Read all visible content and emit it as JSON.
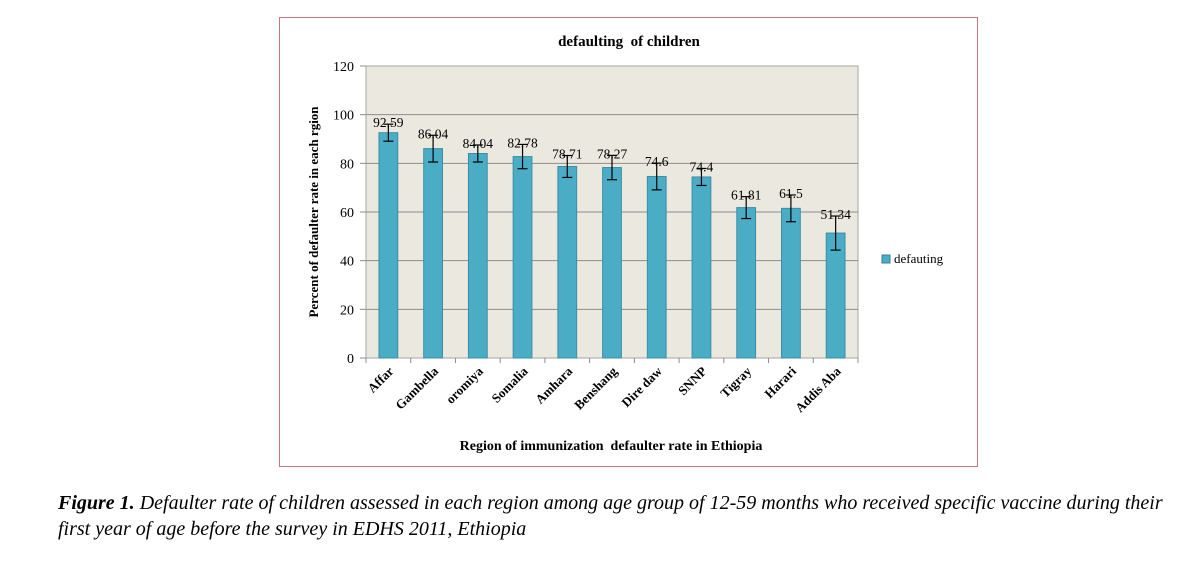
{
  "chart_data": {
    "type": "bar",
    "title": "defaulting  of children",
    "xlabel": "Region of immunization  defaulter rate in Ethiopia",
    "ylabel": "Percent of defaulter rate in each rgion",
    "ylim": [
      0,
      120
    ],
    "yticks": [
      0,
      20,
      40,
      60,
      80,
      100,
      120
    ],
    "grid": true,
    "legend_position": "right",
    "categories": [
      "Affar",
      "Gambella",
      "oromiya",
      "Somalia",
      "Amhara",
      "Benshang",
      "Dire daw",
      "SNNP",
      "Tigray",
      "Harari",
      "Addis Aba"
    ],
    "series": [
      {
        "name": "defauting",
        "color": "#4bacc6",
        "values": [
          92.59,
          86.04,
          84.04,
          82.78,
          78.71,
          78.27,
          74.6,
          74.4,
          61.81,
          61.5,
          51.34
        ],
        "labels": [
          "92.59",
          "86.04",
          "84.04",
          "82.78",
          "78.71",
          "78.27",
          "74.6",
          "74.4",
          "61.81",
          "61.5",
          "51.34"
        ],
        "error": [
          3.5,
          5.5,
          3.5,
          5,
          4.5,
          5,
          5.5,
          3.5,
          4.5,
          5.5,
          7
        ]
      }
    ]
  },
  "caption": {
    "figure_label": "Figure 1.",
    "text": " Defaulter rate of children assessed in each region among age group of 12-59 months who received specific vaccine during their first year of age before the survey in EDHS 2011, Ethiopia"
  }
}
